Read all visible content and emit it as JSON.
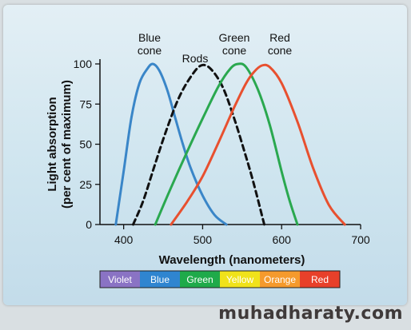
{
  "chart_data": {
    "type": "line",
    "xlabel": "Wavelength (nanometers)",
    "ylabel": [
      "Light absorption",
      "(per cent of maximum)"
    ],
    "xlim": [
      370,
      700
    ],
    "ylim": [
      0,
      100
    ],
    "xticks": [
      400,
      500,
      600,
      700
    ],
    "yticks": [
      0,
      25,
      50,
      75,
      100
    ],
    "grid": false,
    "series": [
      {
        "name": "Blue cone",
        "label_lines": [
          "Blue",
          "cone"
        ],
        "color": "#3a86c8",
        "dash": false,
        "x": [
          390,
          400,
          410,
          420,
          430,
          437,
          445,
          455,
          465,
          475,
          485,
          500,
          515,
          530
        ],
        "y": [
          0,
          33,
          67,
          88,
          97,
          100,
          96,
          84,
          67,
          50,
          35,
          18,
          6,
          0
        ]
      },
      {
        "name": "Rods",
        "label_lines": [
          "Rods"
        ],
        "color": "#111111",
        "dash": true,
        "x": [
          412,
          425,
          440,
          455,
          470,
          485,
          498,
          510,
          525,
          540,
          555,
          565,
          578
        ],
        "y": [
          0,
          15,
          38,
          60,
          79,
          92,
          99,
          97,
          86,
          66,
          42,
          25,
          0
        ]
      },
      {
        "name": "Green cone",
        "label_lines": [
          "Green",
          "cone"
        ],
        "color": "#2aa84f",
        "dash": false,
        "x": [
          440,
          460,
          480,
          500,
          520,
          535,
          545,
          555,
          570,
          585,
          600,
          610,
          620
        ],
        "y": [
          0,
          23,
          45,
          66,
          86,
          97,
          100,
          98,
          84,
          62,
          33,
          15,
          0
        ]
      },
      {
        "name": "Red cone",
        "label_lines": [
          "Red",
          "cone"
        ],
        "color": "#e8502f",
        "dash": false,
        "x": [
          460,
          480,
          500,
          520,
          540,
          555,
          565,
          575,
          585,
          600,
          620,
          640,
          660,
          680
        ],
        "y": [
          0,
          14,
          30,
          51,
          73,
          88,
          95,
          99,
          98,
          88,
          64,
          35,
          12,
          0
        ]
      }
    ],
    "spectrum": [
      {
        "label": "Violet",
        "color": "#8a73c4"
      },
      {
        "label": "Blue",
        "color": "#2f85d0"
      },
      {
        "label": "Green",
        "color": "#1faa4a"
      },
      {
        "label": "Yellow",
        "color": "#f0e21a"
      },
      {
        "label": "Orange",
        "color": "#f59a2c"
      },
      {
        "label": "Red",
        "color": "#e8402a"
      }
    ]
  },
  "watermark": "muhadharaty.com"
}
